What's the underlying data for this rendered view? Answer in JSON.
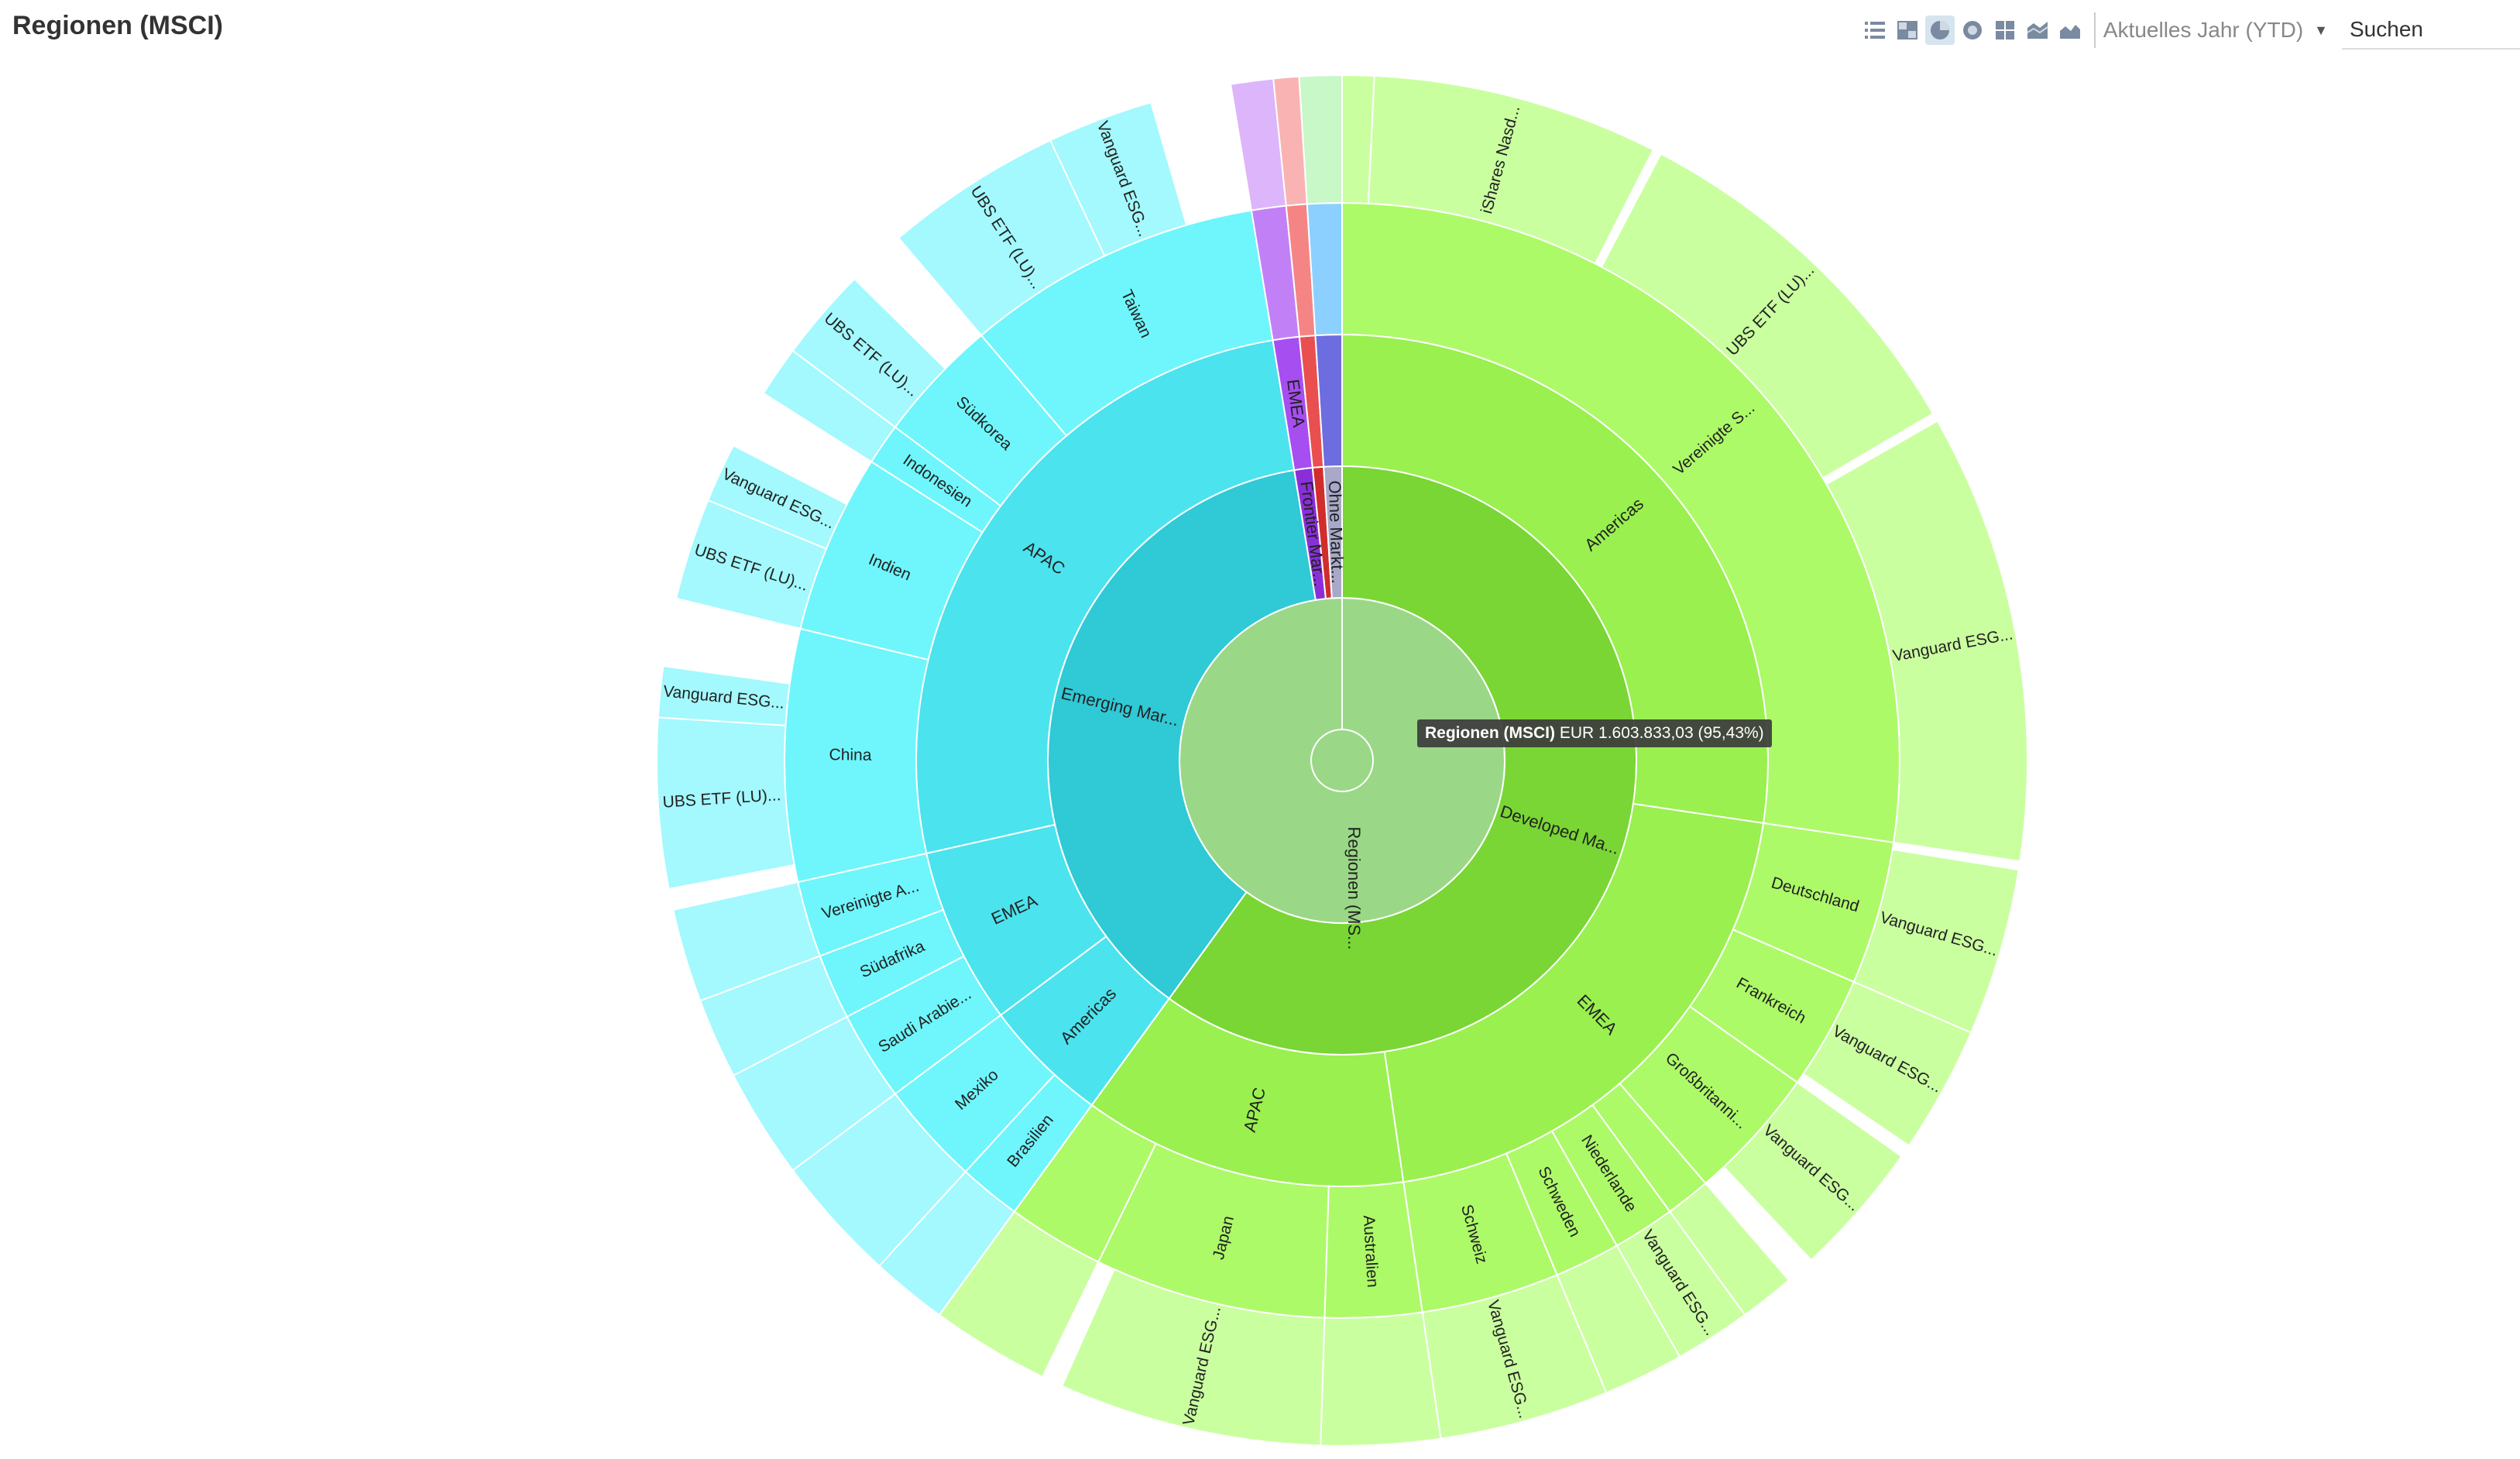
{
  "title": "Regionen (MSCI)",
  "toolbar": {
    "icons": [
      "list-icon",
      "treemap-icon",
      "pie-chart-icon",
      "sunburst-icon",
      "grid-icon",
      "stacked-area-icon",
      "area-chart-icon"
    ],
    "active_icon": "pie-chart-icon",
    "period_label": "Aktuelles Jahr (YTD)",
    "search_placeholder": "Suchen"
  },
  "tooltip": {
    "name": "Regionen (MSCI)",
    "value": "EUR 1.603.833,03 (95,43%)"
  },
  "chart_data": {
    "type": "sunburst",
    "title": "Regionen (MSCI)",
    "root_label": "Regionen (MS...",
    "root_value": "EUR 1.603.833,03 (95,43%)",
    "colors": {
      "root": "#9ad887",
      "developed": [
        "#7ad634",
        "#99f04f",
        "#adfa68",
        "#caffa0"
      ],
      "emerging": [
        "#30c9d6",
        "#4be3ee",
        "#6ef6fc",
        "#a3f9fd"
      ],
      "frontier": [
        "#8a2fd8",
        "#a64ef0",
        "#c280f7",
        "#dcb5fa"
      ],
      "other": [
        "#a8a8c8",
        "#6d6de0",
        "#8cd0ff",
        "#c8f7c8"
      ],
      "red": [
        "#d12d2d",
        "#e94f4f",
        "#f58585",
        "#f9b3b3"
      ]
    },
    "nodes": [
      {
        "name": "Developed Ma...",
        "start": 0.0,
        "end": 0.6,
        "children": [
          {
            "name": "Americas",
            "start": 0.0,
            "end": 0.2735,
            "children": [
              {
                "name": "Vereinigte S...",
                "start": 0.0,
                "end": 0.2735,
                "children": [
                  {
                    "name": "",
                    "start": 0.0,
                    "end": 0.0075
                  },
                  {
                    "name": "iShares Nasd...",
                    "start": 0.0075,
                    "end": 0.075
                  },
                  {
                    "name": "UBS ETF (LU)...",
                    "start": 0.077,
                    "end": 0.1655
                  },
                  {
                    "name": "Vanguard ESG...",
                    "start": 0.1675,
                    "end": 0.2735
                  }
                ]
              }
            ]
          },
          {
            "name": "EMEA",
            "start": 0.2735,
            "end": 0.477,
            "children": [
              {
                "name": "Deutschland",
                "start": 0.2735,
                "end": 0.315,
                "children": [
                  {
                    "name": "Vanguard ESG...",
                    "start": 0.2755,
                    "end": 0.315
                  }
                ]
              },
              {
                "name": "Frankreich",
                "start": 0.315,
                "end": 0.348,
                "children": [
                  {
                    "name": "Vanguard ESG...",
                    "start": 0.315,
                    "end": 0.345
                  }
                ]
              },
              {
                "name": "Großbritanni...",
                "start": 0.348,
                "end": 0.387,
                "children": [
                  {
                    "name": "Vanguard ESG...",
                    "start": 0.348,
                    "end": 0.38
                  }
                ]
              },
              {
                "name": "",
                "start": 0.387,
                "end": 0.4,
                "children": [
                  {
                    "name": "",
                    "start": 0.387,
                    "end": 0.4
                  }
                ]
              },
              {
                "name": "Niederlande",
                "start": 0.4,
                "end": 0.418,
                "children": [
                  {
                    "name": "Vanguard ESG...",
                    "start": 0.4,
                    "end": 0.418
                  }
                ]
              },
              {
                "name": "Schweden",
                "start": 0.418,
                "end": 0.437,
                "children": [
                  {
                    "name": "",
                    "start": 0.418,
                    "end": 0.437
                  }
                ]
              },
              {
                "name": "Schweiz",
                "start": 0.437,
                "end": 0.477,
                "children": [
                  {
                    "name": "Vanguard ESG...",
                    "start": 0.437,
                    "end": 0.477
                  }
                ]
              }
            ]
          },
          {
            "name": "APAC",
            "start": 0.477,
            "end": 0.6,
            "children": [
              {
                "name": "Australien",
                "start": 0.477,
                "end": 0.505,
                "children": [
                  {
                    "name": "",
                    "start": 0.477,
                    "end": 0.505
                  }
                ]
              },
              {
                "name": "Japan",
                "start": 0.505,
                "end": 0.572,
                "children": [
                  {
                    "name": "Vanguard ESG...",
                    "start": 0.505,
                    "end": 0.567
                  }
                ]
              },
              {
                "name": "",
                "start": 0.572,
                "end": 0.6,
                "children": [
                  {
                    "name": "",
                    "start": 0.572,
                    "end": 0.6
                  }
                ]
              }
            ]
          }
        ]
      },
      {
        "name": "Emerging Mar...",
        "start": 0.6,
        "end": 0.974,
        "children": [
          {
            "name": "Americas",
            "start": 0.6,
            "end": 0.648,
            "children": [
              {
                "name": "Brasilien",
                "start": 0.6,
                "end": 0.618,
                "children": [
                  {
                    "name": "",
                    "start": 0.6,
                    "end": 0.618
                  }
                ]
              },
              {
                "name": "Mexiko",
                "start": 0.618,
                "end": 0.648,
                "children": [
                  {
                    "name": "",
                    "start": 0.618,
                    "end": 0.648
                  }
                ]
              }
            ]
          },
          {
            "name": "EMEA",
            "start": 0.648,
            "end": 0.715,
            "children": [
              {
                "name": "Saudi Arabie...",
                "start": 0.648,
                "end": 0.674,
                "children": [
                  {
                    "name": "",
                    "start": 0.648,
                    "end": 0.674
                  }
                ]
              },
              {
                "name": "Südafrika",
                "start": 0.674,
                "end": 0.693,
                "children": [
                  {
                    "name": "",
                    "start": 0.674,
                    "end": 0.693
                  }
                ]
              },
              {
                "name": "Vereinigte A...",
                "start": 0.693,
                "end": 0.715,
                "children": [
                  {
                    "name": "",
                    "start": 0.693,
                    "end": 0.715
                  }
                ]
              }
            ]
          },
          {
            "name": "APAC",
            "start": 0.715,
            "end": 0.974,
            "children": [
              {
                "name": "China",
                "start": 0.715,
                "end": 0.788,
                "children": [
                  {
                    "name": "UBS ETF (LU)...",
                    "start": 0.72,
                    "end": 0.76
                  },
                  {
                    "name": "Vanguard ESG...",
                    "start": 0.76,
                    "end": 0.772
                  }
                ]
              },
              {
                "name": "Indien",
                "start": 0.788,
                "end": 0.84,
                "children": [
                  {
                    "name": "UBS ETF (LU)...",
                    "start": 0.788,
                    "end": 0.812
                  },
                  {
                    "name": "Vanguard ESG...",
                    "start": 0.812,
                    "end": 0.826
                  }
                ]
              },
              {
                "name": "Indonesien",
                "start": 0.84,
                "end": 0.852,
                "children": [
                  {
                    "name": "",
                    "start": 0.84,
                    "end": 0.852
                  }
                ]
              },
              {
                "name": "Südkorea",
                "start": 0.852,
                "end": 0.888,
                "children": [
                  {
                    "name": "UBS ETF (LU)...",
                    "start": 0.852,
                    "end": 0.874
                  }
                ]
              },
              {
                "name": "Taiwan",
                "start": 0.888,
                "end": 0.974,
                "children": [
                  {
                    "name": "UBS ETF (LU)...",
                    "start": 0.888,
                    "end": 0.93
                  },
                  {
                    "name": "Vanguard ESG...",
                    "start": 0.93,
                    "end": 0.955
                  }
                ]
              }
            ]
          }
        ]
      },
      {
        "name": "Frontier Mar...",
        "start": 0.974,
        "end": 0.984,
        "children": [
          {
            "name": "EMEA",
            "start": 0.974,
            "end": 0.984,
            "children": [
              {
                "name": "",
                "start": 0.974,
                "end": 0.984,
                "children": [
                  {
                    "name": "",
                    "start": 0.974,
                    "end": 0.984
                  }
                ]
              }
            ]
          }
        ]
      },
      {
        "name": "",
        "start": 0.984,
        "end": 0.99,
        "children": [
          {
            "name": "",
            "start": 0.984,
            "end": 0.99,
            "children": [
              {
                "name": "",
                "start": 0.984,
                "end": 0.99,
                "children": [
                  {
                    "name": "",
                    "start": 0.984,
                    "end": 0.99
                  }
                ]
              }
            ]
          }
        ]
      },
      {
        "name": "Ohne Markt...",
        "start": 0.99,
        "end": 1.0,
        "children": [
          {
            "name": "",
            "start": 0.99,
            "end": 1.0,
            "children": [
              {
                "name": "",
                "start": 0.99,
                "end": 1.0,
                "children": [
                  {
                    "name": "",
                    "start": 0.99,
                    "end": 1.0
                  }
                ]
              }
            ]
          }
        ]
      }
    ]
  }
}
